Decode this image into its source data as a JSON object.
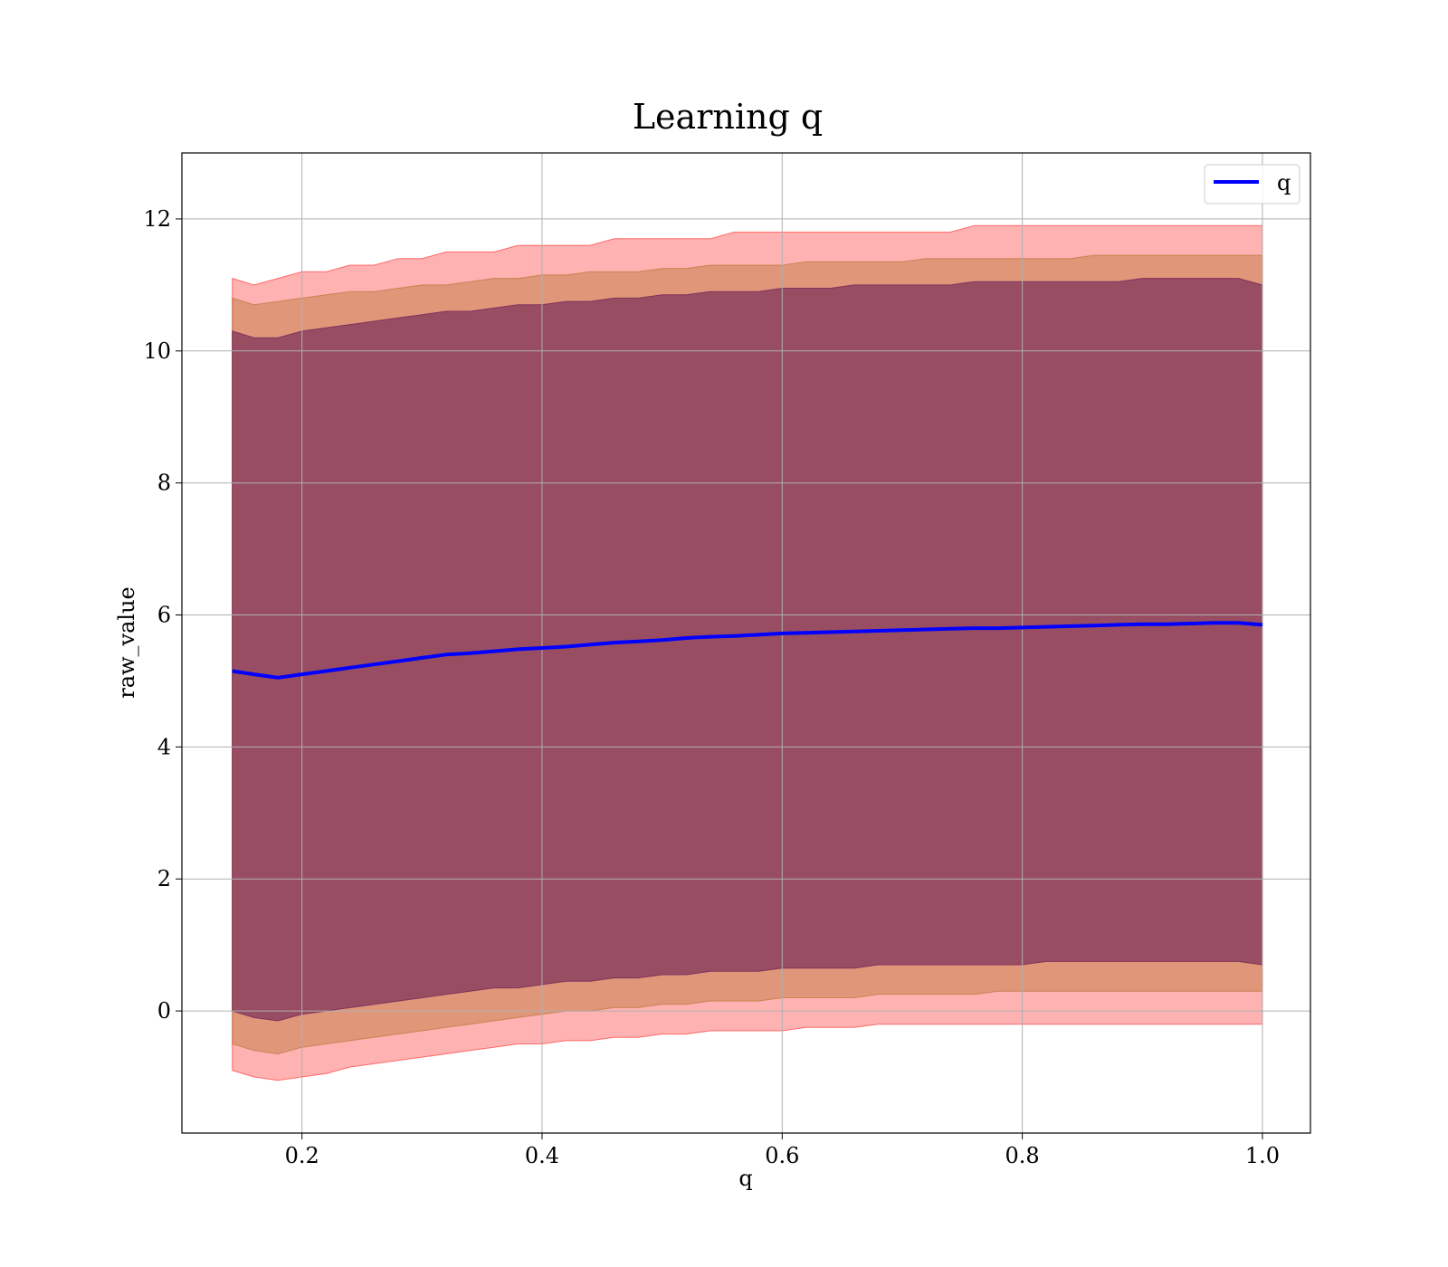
{
  "chart_data": {
    "type": "area",
    "title": "Learning q",
    "xlabel": "q",
    "ylabel": "raw_value",
    "xlim": [
      0.1,
      1.04
    ],
    "ylim": [
      -1.85,
      13.0
    ],
    "xticks": [
      0.2,
      0.4,
      0.6,
      0.8,
      1.0
    ],
    "xtick_labels": [
      "0.2",
      "0.4",
      "0.6",
      "0.8",
      "1.0"
    ],
    "yticks": [
      0,
      2,
      4,
      6,
      8,
      10,
      12
    ],
    "ytick_labels": [
      "0",
      "2",
      "4",
      "6",
      "8",
      "10",
      "12"
    ],
    "grid": true,
    "legend": {
      "position": "top-right",
      "entries": [
        {
          "name": "q",
          "color": "#0000ff"
        }
      ]
    },
    "x": [
      0.142,
      0.16,
      0.18,
      0.2,
      0.22,
      0.24,
      0.26,
      0.28,
      0.3,
      0.32,
      0.34,
      0.36,
      0.38,
      0.4,
      0.42,
      0.44,
      0.46,
      0.48,
      0.5,
      0.52,
      0.54,
      0.56,
      0.58,
      0.6,
      0.62,
      0.64,
      0.66,
      0.68,
      0.7,
      0.72,
      0.74,
      0.76,
      0.78,
      0.8,
      0.82,
      0.84,
      0.86,
      0.88,
      0.9,
      0.92,
      0.94,
      0.96,
      0.98,
      1.0
    ],
    "series": [
      {
        "name": "q",
        "color": "#0000ff",
        "values": [
          5.15,
          5.1,
          5.05,
          5.1,
          5.15,
          5.2,
          5.25,
          5.3,
          5.35,
          5.4,
          5.42,
          5.45,
          5.48,
          5.5,
          5.52,
          5.55,
          5.58,
          5.6,
          5.62,
          5.65,
          5.67,
          5.68,
          5.7,
          5.72,
          5.73,
          5.74,
          5.75,
          5.76,
          5.77,
          5.78,
          5.79,
          5.8,
          5.8,
          5.81,
          5.82,
          5.83,
          5.84,
          5.85,
          5.86,
          5.86,
          5.87,
          5.88,
          5.88,
          5.85
        ]
      }
    ],
    "bands": [
      {
        "name": "",
        "color": "#ff0000",
        "opacity": 0.3,
        "upper": [
          11.1,
          11.0,
          11.1,
          11.2,
          11.2,
          11.3,
          11.3,
          11.4,
          11.4,
          11.5,
          11.5,
          11.5,
          11.6,
          11.6,
          11.6,
          11.6,
          11.7,
          11.7,
          11.7,
          11.7,
          11.7,
          11.8,
          11.8,
          11.8,
          11.8,
          11.8,
          11.8,
          11.8,
          11.8,
          11.8,
          11.8,
          11.9,
          11.9,
          11.9,
          11.9,
          11.9,
          11.9,
          11.9,
          11.9,
          11.9,
          11.9,
          11.9,
          11.9,
          11.9
        ],
        "lower": [
          -0.9,
          -1.0,
          -1.05,
          -1.0,
          -0.95,
          -0.85,
          -0.8,
          -0.75,
          -0.7,
          -0.65,
          -0.6,
          -0.55,
          -0.5,
          -0.5,
          -0.45,
          -0.45,
          -0.4,
          -0.4,
          -0.35,
          -0.35,
          -0.3,
          -0.3,
          -0.3,
          -0.3,
          -0.25,
          -0.25,
          -0.25,
          -0.2,
          -0.2,
          -0.2,
          -0.2,
          -0.2,
          -0.2,
          -0.2,
          -0.2,
          -0.2,
          -0.2,
          -0.2,
          -0.2,
          -0.2,
          -0.2,
          -0.2,
          -0.2,
          -0.2
        ]
      },
      {
        "name": "",
        "color": "#b87333",
        "opacity": 0.45,
        "upper": [
          10.8,
          10.7,
          10.75,
          10.8,
          10.85,
          10.9,
          10.9,
          10.95,
          11.0,
          11.0,
          11.05,
          11.1,
          11.1,
          11.15,
          11.15,
          11.2,
          11.2,
          11.2,
          11.25,
          11.25,
          11.3,
          11.3,
          11.3,
          11.3,
          11.35,
          11.35,
          11.35,
          11.35,
          11.35,
          11.4,
          11.4,
          11.4,
          11.4,
          11.4,
          11.4,
          11.4,
          11.45,
          11.45,
          11.45,
          11.45,
          11.45,
          11.45,
          11.45,
          11.45
        ],
        "lower": [
          -0.5,
          -0.6,
          -0.65,
          -0.55,
          -0.5,
          -0.45,
          -0.4,
          -0.35,
          -0.3,
          -0.25,
          -0.2,
          -0.15,
          -0.1,
          -0.05,
          0.0,
          0.0,
          0.05,
          0.05,
          0.1,
          0.1,
          0.15,
          0.15,
          0.15,
          0.2,
          0.2,
          0.2,
          0.2,
          0.25,
          0.25,
          0.25,
          0.25,
          0.25,
          0.3,
          0.3,
          0.3,
          0.3,
          0.3,
          0.3,
          0.3,
          0.3,
          0.3,
          0.3,
          0.3,
          0.3
        ]
      },
      {
        "name": "",
        "color": "#7b2d5a",
        "opacity": 0.7,
        "upper": [
          10.3,
          10.2,
          10.2,
          10.3,
          10.35,
          10.4,
          10.45,
          10.5,
          10.55,
          10.6,
          10.6,
          10.65,
          10.7,
          10.7,
          10.75,
          10.75,
          10.8,
          10.8,
          10.85,
          10.85,
          10.9,
          10.9,
          10.9,
          10.95,
          10.95,
          10.95,
          11.0,
          11.0,
          11.0,
          11.0,
          11.0,
          11.05,
          11.05,
          11.05,
          11.05,
          11.05,
          11.05,
          11.05,
          11.1,
          11.1,
          11.1,
          11.1,
          11.1,
          11.0
        ],
        "lower": [
          0.0,
          -0.1,
          -0.15,
          -0.05,
          0.0,
          0.05,
          0.1,
          0.15,
          0.2,
          0.25,
          0.3,
          0.35,
          0.35,
          0.4,
          0.45,
          0.45,
          0.5,
          0.5,
          0.55,
          0.55,
          0.6,
          0.6,
          0.6,
          0.65,
          0.65,
          0.65,
          0.65,
          0.7,
          0.7,
          0.7,
          0.7,
          0.7,
          0.7,
          0.7,
          0.75,
          0.75,
          0.75,
          0.75,
          0.75,
          0.75,
          0.75,
          0.75,
          0.75,
          0.7
        ]
      }
    ]
  }
}
